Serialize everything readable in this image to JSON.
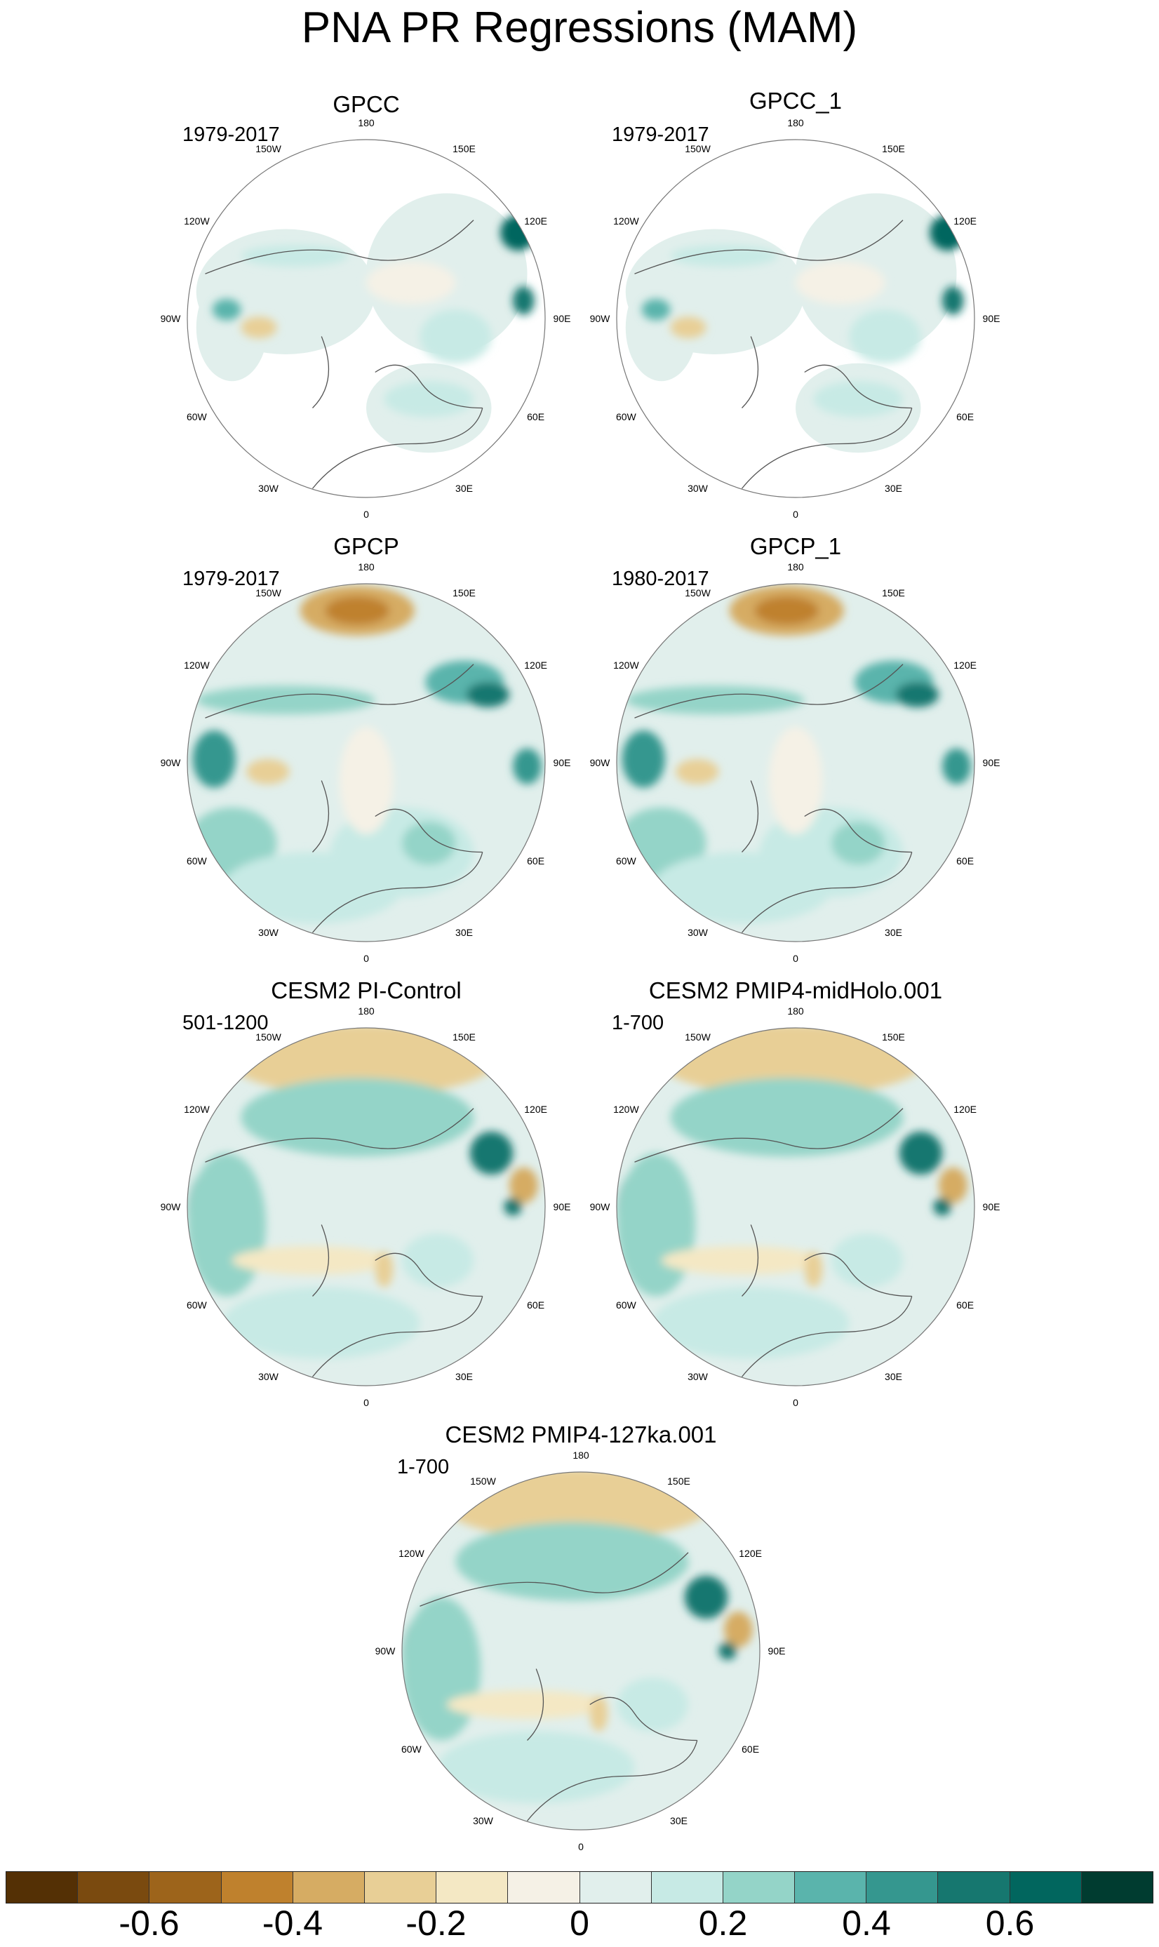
{
  "title": "PNA PR Regressions (MAM)",
  "chart_data": {
    "type": "contour-map",
    "projection": "north polar stereographic",
    "variable": "precipitation regression on PNA index",
    "season": "MAM",
    "colorbar": {
      "levels": [
        -0.7,
        -0.6,
        -0.5,
        -0.4,
        -0.3,
        -0.2,
        -0.1,
        0,
        0.1,
        0.2,
        0.3,
        0.4,
        0.5,
        0.6,
        0.7
      ],
      "colors": [
        "#543005",
        "#7a4a0f",
        "#9d641b",
        "#bf812d",
        "#d6ac63",
        "#e8cf96",
        "#f4e8c4",
        "#f5f1e6",
        "#e1efec",
        "#c7eae5",
        "#94d4c8",
        "#5ab4ac",
        "#35978f",
        "#16776f",
        "#01665e",
        "#003c30"
      ],
      "tick_labels": [
        "-0.6",
        "-0.4",
        "-0.2",
        "0",
        "0.2",
        "0.4",
        "0.6"
      ],
      "tick_values": [
        -0.6,
        -0.4,
        -0.2,
        0,
        0.2,
        0.4,
        0.6
      ]
    },
    "longitude_labels": [
      "180",
      "150E",
      "120E",
      "90E",
      "60E",
      "30E",
      "0",
      "30W",
      "60W",
      "90W",
      "120W",
      "150W"
    ],
    "panels": [
      {
        "title": "GPCC",
        "period": "1979-2017",
        "style": "land-only"
      },
      {
        "title": "GPCC_1",
        "period": "1979-2017",
        "style": "land-only"
      },
      {
        "title": "GPCP",
        "period": "1979-2017",
        "style": "obs-global"
      },
      {
        "title": "GPCP_1",
        "period": "1980-2017",
        "style": "obs-global"
      },
      {
        "title": "CESM2 PI-Control",
        "period": "501-1200",
        "style": "model"
      },
      {
        "title": "CESM2 PMIP4-midHolo.001",
        "period": "1-700",
        "style": "model"
      },
      {
        "title": "CESM2 PMIP4-127ka.001",
        "period": "1-700",
        "style": "model"
      }
    ]
  }
}
